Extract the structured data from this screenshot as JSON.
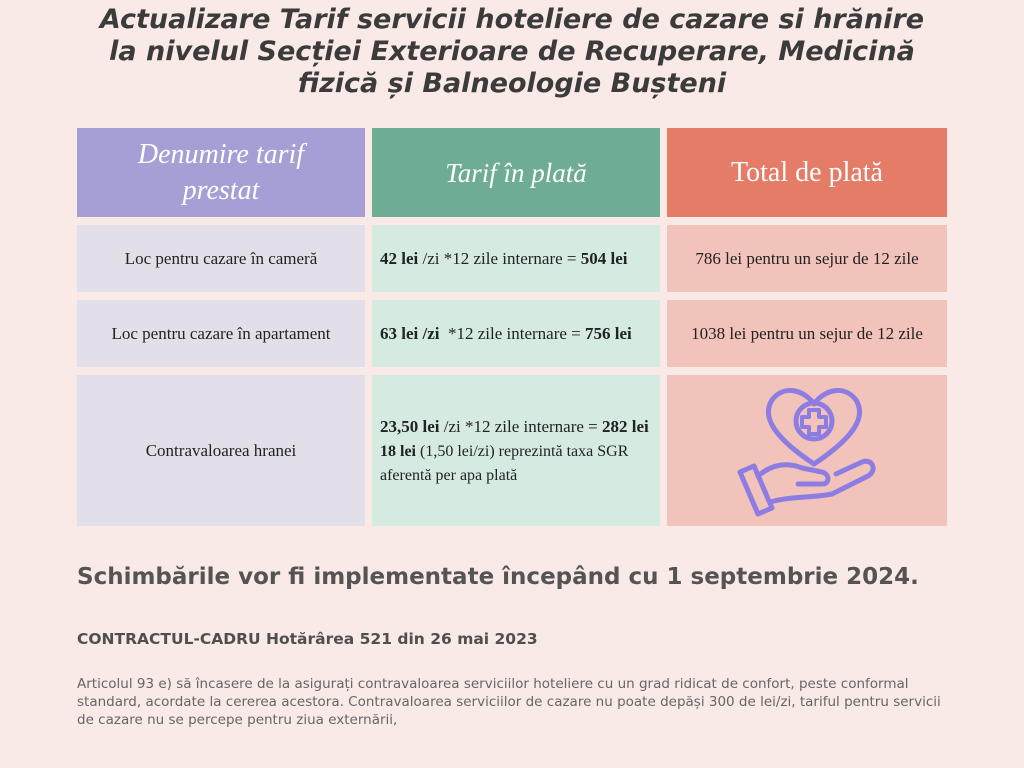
{
  "header": {
    "title_lines": [
      "Actualizare Tarif servicii hoteliere de cazare si hrănire",
      "la nivelul Secției Exterioare de Recuperare, Medicină",
      "fizică și Balneologie Bușteni"
    ]
  },
  "table": {
    "columns": [
      "Denumire tarif prestat",
      "Tarif în plată",
      "Total de plată"
    ],
    "rows": [
      {
        "label": "Loc pentru cazare în cameră",
        "tariff": [
          [
            {
              "text": "42 lei",
              "bold": true
            },
            {
              "text": " /zi *12 zile internare = "
            },
            {
              "text": "504 lei",
              "bold": true
            }
          ]
        ],
        "total": "786 lei pentru un sejur de 12 zile"
      },
      {
        "label": "Loc pentru cazare în apartament",
        "tariff": [
          [
            {
              "text": "63 lei /zi",
              "bold": true
            },
            {
              "text": "  *12 zile internare = "
            },
            {
              "text": "756 lei",
              "bold": true
            }
          ]
        ],
        "total": "1038 lei pentru un sejur de 12 zile"
      },
      {
        "label": "Contravaloarea hranei",
        "tariff": [
          [
            {
              "text": "23,50 lei",
              "bold": true
            },
            {
              "text": " /zi *12 zile internare = "
            },
            {
              "text": "282 lei",
              "bold": true
            }
          ],
          [
            {
              "text": "18 lei",
              "bold": true
            },
            {
              "text": " (1,50 lei/zi) reprezintă taxa SGR aferentă per apa plată"
            }
          ]
        ]
      }
    ]
  },
  "notice": "Schimbările vor fi implementate începând cu 1 septembrie 2024.",
  "law": {
    "heading": "CONTRACTUL-CADRU Hotărârea 521 din 26 mai 2023",
    "body": "Articolul 93 e) să încasere de la asigurați contravaloarea serviciilor hoteliere cu un grad ridicat de confort, peste conformal standard, acordate la cererea acestora. Contravaloarea serviciilor de cazare nu poate depăși 300 de lei/zi, tariful pentru servicii de cazare nu se percepe pentru ziua externării,"
  }
}
